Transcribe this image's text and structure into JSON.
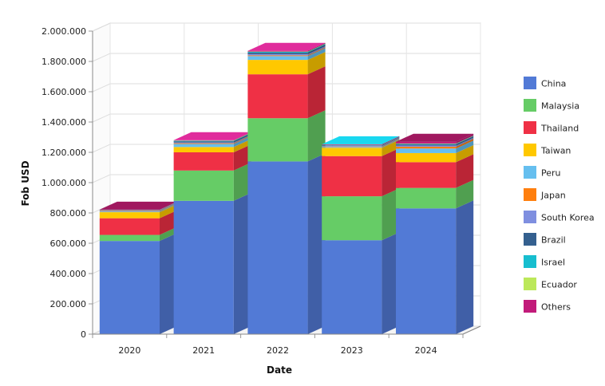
{
  "chart_data": {
    "type": "bar",
    "stacked": true,
    "style": "3d",
    "xlabel": "Date",
    "ylabel": "Fob USD",
    "ylim": [
      0,
      2000000
    ],
    "y_ticks": [
      0,
      200000,
      400000,
      600000,
      800000,
      1000000,
      1200000,
      1400000,
      1600000,
      1800000,
      2000000
    ],
    "y_tick_labels": [
      "0",
      "200.000",
      "400.000",
      "600.000",
      "800.000",
      "1.000.000",
      "1.200.000",
      "1.400.000",
      "1.600.000",
      "1.800.000",
      "2.000.000"
    ],
    "grid": true,
    "legend_position": "right",
    "categories": [
      "2020",
      "2021",
      "2022",
      "2023",
      "2024"
    ],
    "series": [
      {
        "name": "China",
        "color": "#527ad6",
        "values": [
          615000,
          880000,
          1140000,
          620000,
          830000
        ]
      },
      {
        "name": "Malaysia",
        "color": "#66cc66",
        "values": [
          40000,
          200000,
          285000,
          290000,
          135000
        ]
      },
      {
        "name": "Thailand",
        "color": "#ef3045",
        "values": [
          110000,
          120000,
          290000,
          265000,
          170000
        ]
      },
      {
        "name": "Taiwan",
        "color": "#ffc800",
        "values": [
          40000,
          35000,
          95000,
          55000,
          60000
        ]
      },
      {
        "name": "Peru",
        "color": "#66bfef",
        "values": [
          5000,
          20000,
          25000,
          5000,
          30000
        ]
      },
      {
        "name": "Japan",
        "color": "#ff7f0e",
        "values": [
          3000,
          5000,
          5000,
          3000,
          12000
        ]
      },
      {
        "name": "South Korea",
        "color": "#7f8fe0",
        "values": [
          3000,
          5000,
          8000,
          5000,
          8000
        ]
      },
      {
        "name": "Brazil",
        "color": "#34608f",
        "values": [
          2000,
          8000,
          10000,
          3000,
          8000
        ]
      },
      {
        "name": "Israel",
        "color": "#17becf",
        "values": [
          1000,
          3000,
          5000,
          2000,
          3000
        ]
      },
      {
        "name": "Ecuador",
        "color": "#bce85a",
        "values": [
          1000,
          2000,
          2000,
          1000,
          2000
        ]
      },
      {
        "name": "Others",
        "color": "#c21b7a",
        "values": [
          2000,
          2000,
          5000,
          4000,
          12000
        ]
      }
    ],
    "top_face_colors": [
      "#a0185f",
      "#e02c9c",
      "#e02c9c",
      "#19d8f0",
      "#a0185f"
    ]
  }
}
